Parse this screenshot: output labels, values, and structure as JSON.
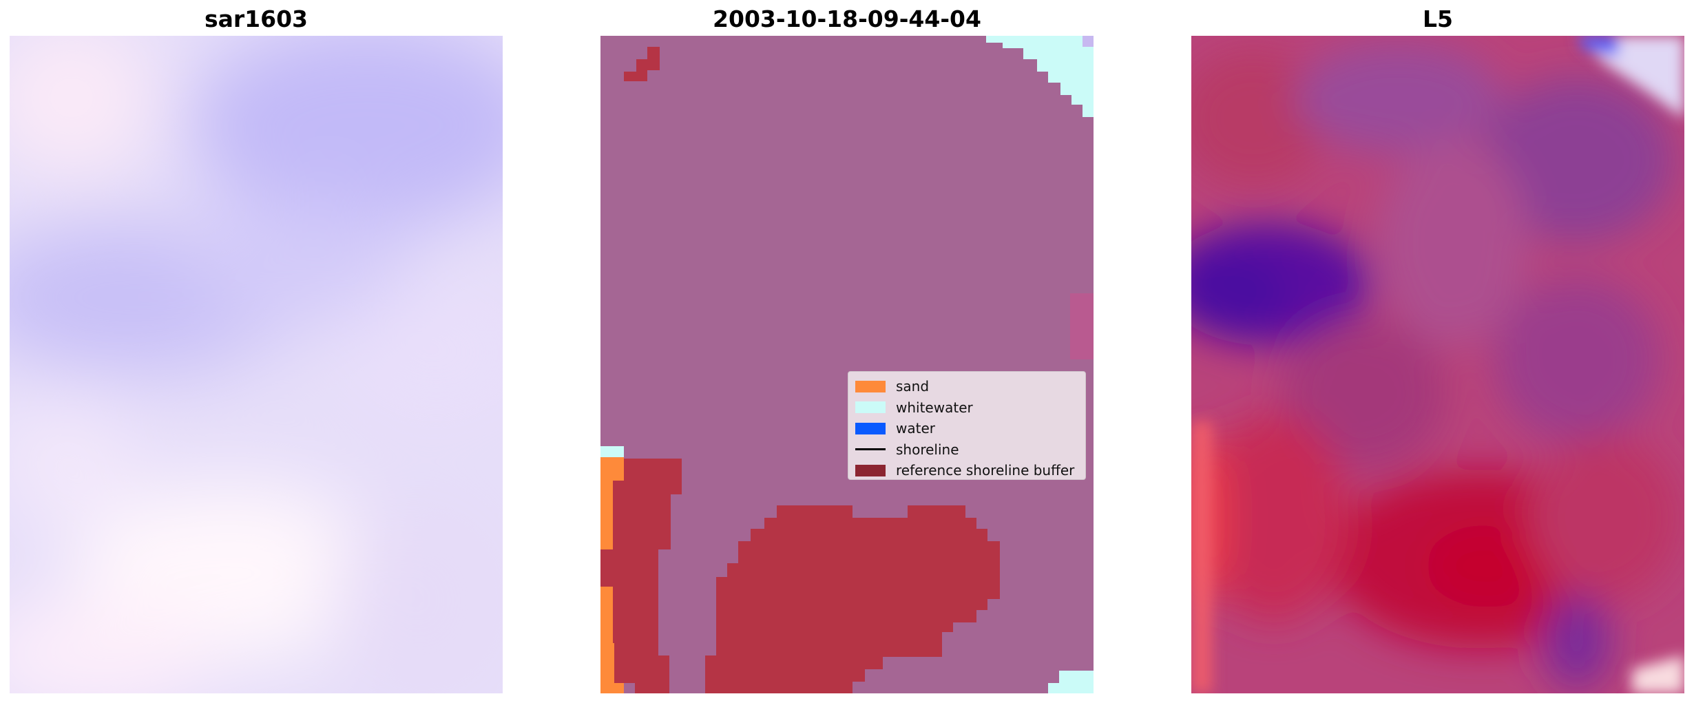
{
  "panels": [
    {
      "title": "sar1603",
      "image": "blurred-lavender-sar-image"
    },
    {
      "title": "2003-10-18-09-44-04",
      "image": "classified-shoreline-map"
    },
    {
      "title": "L5",
      "image": "magenta-purple-satellite-image"
    }
  ],
  "legend": {
    "entries": [
      {
        "label": "sand",
        "color": "#fe8a3a",
        "kind": "patch"
      },
      {
        "label": "whitewater",
        "color": "#cbfbf8",
        "kind": "patch"
      },
      {
        "label": "water",
        "color": "#0a5afe",
        "kind": "patch"
      },
      {
        "label": "shoreline",
        "color": "#000000",
        "kind": "line"
      },
      {
        "label": "reference shoreline buffer",
        "color": "#8b2531",
        "kind": "patch"
      }
    ]
  },
  "colors": {
    "background_class": "#a56694",
    "buffer_overlay": "#b53445",
    "sar_base": "#ddd6fb",
    "l5_base": "#c0396a"
  }
}
